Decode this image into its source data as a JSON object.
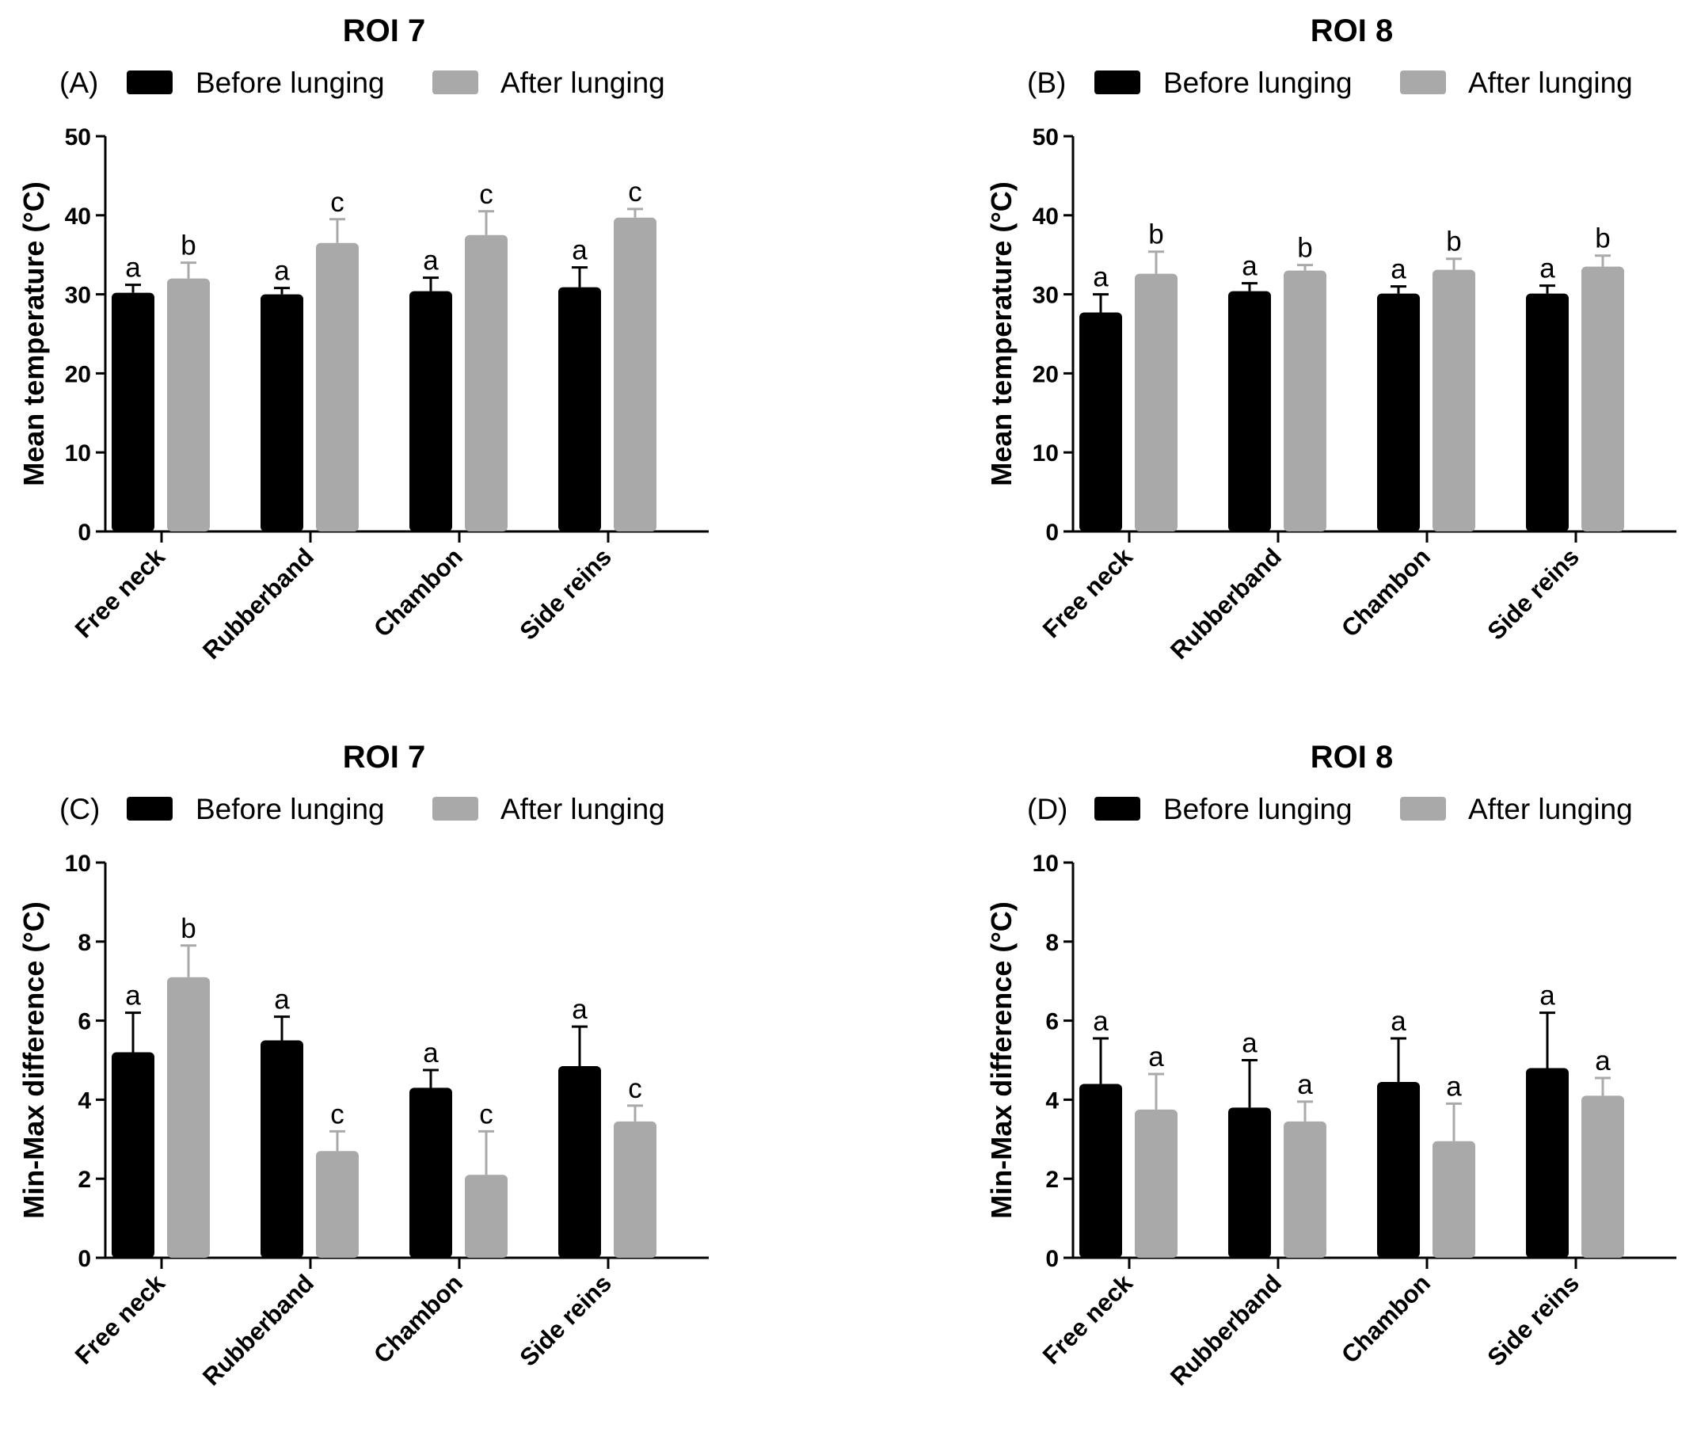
{
  "chart_data": [
    {
      "type": "bar",
      "panel_label": "(A)",
      "title": "ROI 7",
      "ylabel": "Mean temperature  (°C)",
      "xlabel": "",
      "ylim": [
        0,
        50
      ],
      "yticks": [
        0,
        10,
        20,
        30,
        40,
        50
      ],
      "categories": [
        "Free neck",
        "Rubberband",
        "Chambon",
        "Side reins"
      ],
      "legend_position": "top",
      "series": [
        {
          "name": "Before lunging",
          "color": "#000000",
          "values": [
            30.2,
            30.0,
            30.4,
            30.9
          ],
          "errors": [
            1.0,
            0.8,
            1.7,
            2.5
          ],
          "letters": [
            "a",
            "a",
            "a",
            "a"
          ]
        },
        {
          "name": "After lunging",
          "color": "#a9a9a9",
          "values": [
            32.0,
            36.5,
            37.5,
            39.7
          ],
          "errors": [
            2.0,
            3.0,
            3.0,
            1.1
          ],
          "letters": [
            "b",
            "c",
            "c",
            "c"
          ]
        }
      ]
    },
    {
      "type": "bar",
      "panel_label": "(B)",
      "title": "ROI 8",
      "ylabel": "Mean temperature  (°C)",
      "xlabel": "",
      "ylim": [
        0,
        50
      ],
      "yticks": [
        0,
        10,
        20,
        30,
        40,
        50
      ],
      "categories": [
        "Free neck",
        "Rubberband",
        "Chambon",
        "Side reins"
      ],
      "legend_position": "top",
      "series": [
        {
          "name": "Before lunging",
          "color": "#000000",
          "values": [
            27.7,
            30.4,
            30.1,
            30.1
          ],
          "errors": [
            2.3,
            1.0,
            0.9,
            1.0
          ],
          "letters": [
            "a",
            "a",
            "a",
            "a"
          ]
        },
        {
          "name": "After lunging",
          "color": "#a9a9a9",
          "values": [
            32.6,
            33.0,
            33.1,
            33.5
          ],
          "errors": [
            2.8,
            0.7,
            1.4,
            1.4
          ],
          "letters": [
            "b",
            "b",
            "b",
            "b"
          ]
        }
      ]
    },
    {
      "type": "bar",
      "panel_label": "(C)",
      "title": "ROI 7",
      "ylabel": "Min-Max difference  (°C)",
      "xlabel": "",
      "ylim": [
        0,
        10
      ],
      "yticks": [
        0,
        2,
        4,
        6,
        8,
        10
      ],
      "categories": [
        "Free neck",
        "Rubberband",
        "Chambon",
        "Side reins"
      ],
      "legend_position": "top",
      "series": [
        {
          "name": "Before lunging",
          "color": "#000000",
          "values": [
            5.2,
            5.5,
            4.3,
            4.85
          ],
          "errors": [
            1.0,
            0.6,
            0.45,
            1.0
          ],
          "letters": [
            "a",
            "a",
            "a",
            "a"
          ]
        },
        {
          "name": "After lunging",
          "color": "#a9a9a9",
          "values": [
            7.1,
            2.7,
            2.1,
            3.45
          ],
          "errors": [
            0.8,
            0.5,
            1.1,
            0.4
          ],
          "letters": [
            "b",
            "c",
            "c",
            "c"
          ]
        }
      ]
    },
    {
      "type": "bar",
      "panel_label": "(D)",
      "title": "ROI 8",
      "ylabel": "Min-Max difference  (°C)",
      "xlabel": "",
      "ylim": [
        0,
        10
      ],
      "yticks": [
        0,
        2,
        4,
        6,
        8,
        10
      ],
      "categories": [
        "Free neck",
        "Rubberband",
        "Chambon",
        "Side reins"
      ],
      "legend_position": "top",
      "series": [
        {
          "name": "Before lunging",
          "color": "#000000",
          "values": [
            4.4,
            3.8,
            4.45,
            4.8
          ],
          "errors": [
            1.15,
            1.2,
            1.1,
            1.4
          ],
          "letters": [
            "a",
            "a",
            "a",
            "a"
          ]
        },
        {
          "name": "After lunging",
          "color": "#a9a9a9",
          "values": [
            3.75,
            3.45,
            2.95,
            4.1
          ],
          "errors": [
            0.9,
            0.5,
            0.95,
            0.45
          ],
          "letters": [
            "a",
            "a",
            "a",
            "a"
          ]
        }
      ]
    }
  ]
}
